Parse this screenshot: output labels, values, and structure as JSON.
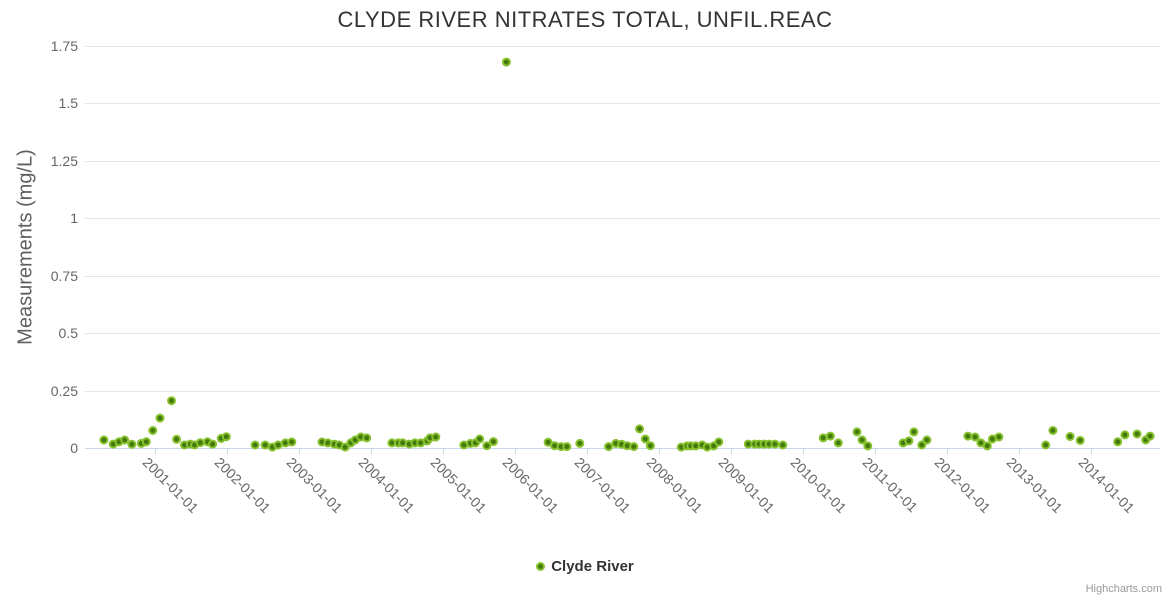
{
  "credits": "Highcharts.com",
  "colors": {
    "background": "#ffffff",
    "title_text": "#333333",
    "axis_label_text": "#666666",
    "gridline": "#e6e6e6",
    "axis_line": "#ccd6eb",
    "marker_fill": "#44790d",
    "marker_stroke": "#86c12e"
  },
  "chart_data": {
    "type": "scatter",
    "title": "CLYDE RIVER NITRATES TOTAL, UNFIL.REAC",
    "xlabel": "",
    "ylabel": "Measurements (mg/L)",
    "grid": "horizontal-only",
    "legend_position": "bottom-center",
    "xlim": [
      2000.028,
      2014.958
    ],
    "ylim": [
      0,
      1.75
    ],
    "y_axis": {
      "title": "Measurements (mg/L)",
      "ticks": [
        {
          "value": 0,
          "label": "0"
        },
        {
          "value": 0.25,
          "label": "0.25"
        },
        {
          "value": 0.5,
          "label": "0.5"
        },
        {
          "value": 0.75,
          "label": "0.75"
        },
        {
          "value": 1,
          "label": "1"
        },
        {
          "value": 1.25,
          "label": "1.25"
        },
        {
          "value": 1.5,
          "label": "1.5"
        },
        {
          "value": 1.75,
          "label": "1.75"
        }
      ]
    },
    "x_axis": {
      "ticks": [
        {
          "value": 2001,
          "label": "2001-01-01"
        },
        {
          "value": 2002,
          "label": "2002-01-01"
        },
        {
          "value": 2003,
          "label": "2003-01-01"
        },
        {
          "value": 2004,
          "label": "2004-01-01"
        },
        {
          "value": 2005,
          "label": "2005-01-01"
        },
        {
          "value": 2006,
          "label": "2006-01-01"
        },
        {
          "value": 2007,
          "label": "2007-01-01"
        },
        {
          "value": 2008,
          "label": "2008-01-01"
        },
        {
          "value": 2009,
          "label": "2009-01-01"
        },
        {
          "value": 2010,
          "label": "2010-01-01"
        },
        {
          "value": 2011,
          "label": "2011-01-01"
        },
        {
          "value": 2012,
          "label": "2012-01-01"
        },
        {
          "value": 2013,
          "label": "2013-01-01"
        },
        {
          "value": 2014,
          "label": "2014-01-01"
        }
      ]
    },
    "series": [
      {
        "name": "Clyde River",
        "marker": {
          "fill": "#44790d",
          "stroke": "#86c12e",
          "radius": 3.5,
          "stroke_width": 2
        },
        "points": [
          [
            2000.29,
            0.035
          ],
          [
            2000.42,
            0.017
          ],
          [
            2000.5,
            0.027
          ],
          [
            2000.58,
            0.035
          ],
          [
            2000.68,
            0.016
          ],
          [
            2000.81,
            0.02
          ],
          [
            2000.88,
            0.027
          ],
          [
            2000.97,
            0.076
          ],
          [
            2001.07,
            0.13
          ],
          [
            2001.23,
            0.206
          ],
          [
            2001.3,
            0.038
          ],
          [
            2001.41,
            0.013
          ],
          [
            2001.49,
            0.017
          ],
          [
            2001.55,
            0.013
          ],
          [
            2001.63,
            0.023
          ],
          [
            2001.73,
            0.027
          ],
          [
            2001.8,
            0.017
          ],
          [
            2001.92,
            0.042
          ],
          [
            2001.99,
            0.049
          ],
          [
            2002.39,
            0.013
          ],
          [
            2002.53,
            0.013
          ],
          [
            2002.63,
            0.004
          ],
          [
            2002.71,
            0.013
          ],
          [
            2002.81,
            0.022
          ],
          [
            2002.9,
            0.026
          ],
          [
            2003.32,
            0.026
          ],
          [
            2003.4,
            0.022
          ],
          [
            2003.49,
            0.017
          ],
          [
            2003.56,
            0.013
          ],
          [
            2003.64,
            0.004
          ],
          [
            2003.72,
            0.022
          ],
          [
            2003.78,
            0.035
          ],
          [
            2003.86,
            0.048
          ],
          [
            2003.94,
            0.044
          ],
          [
            2004.29,
            0.022
          ],
          [
            2004.38,
            0.022
          ],
          [
            2004.44,
            0.022
          ],
          [
            2004.53,
            0.017
          ],
          [
            2004.61,
            0.022
          ],
          [
            2004.69,
            0.022
          ],
          [
            2004.78,
            0.031
          ],
          [
            2004.82,
            0.044
          ],
          [
            2004.9,
            0.048
          ],
          [
            2005.29,
            0.013
          ],
          [
            2005.38,
            0.02
          ],
          [
            2005.45,
            0.022
          ],
          [
            2005.51,
            0.039
          ],
          [
            2005.61,
            0.01
          ],
          [
            2005.7,
            0.028
          ],
          [
            2005.88,
            1.68
          ],
          [
            2006.46,
            0.025
          ],
          [
            2006.55,
            0.01
          ],
          [
            2006.64,
            0.006
          ],
          [
            2006.72,
            0.006
          ],
          [
            2006.9,
            0.02
          ],
          [
            2007.3,
            0.006
          ],
          [
            2007.4,
            0.02
          ],
          [
            2007.48,
            0.016
          ],
          [
            2007.56,
            0.01
          ],
          [
            2007.65,
            0.006
          ],
          [
            2007.73,
            0.083
          ],
          [
            2007.81,
            0.039
          ],
          [
            2007.88,
            0.01
          ],
          [
            2008.31,
            0.004
          ],
          [
            2008.39,
            0.009
          ],
          [
            2008.44,
            0.009
          ],
          [
            2008.51,
            0.009
          ],
          [
            2008.6,
            0.013
          ],
          [
            2008.67,
            0.004
          ],
          [
            2008.76,
            0.009
          ],
          [
            2008.83,
            0.026
          ],
          [
            2009.24,
            0.017
          ],
          [
            2009.33,
            0.017
          ],
          [
            2009.39,
            0.017
          ],
          [
            2009.46,
            0.017
          ],
          [
            2009.53,
            0.017
          ],
          [
            2009.61,
            0.017
          ],
          [
            2009.72,
            0.013
          ],
          [
            2010.28,
            0.044
          ],
          [
            2010.38,
            0.052
          ],
          [
            2010.49,
            0.022
          ],
          [
            2010.75,
            0.07
          ],
          [
            2010.82,
            0.035
          ],
          [
            2010.9,
            0.009
          ],
          [
            2011.39,
            0.022
          ],
          [
            2011.47,
            0.031
          ],
          [
            2011.54,
            0.07
          ],
          [
            2011.65,
            0.013
          ],
          [
            2011.72,
            0.035
          ],
          [
            2012.29,
            0.052
          ],
          [
            2012.39,
            0.048
          ],
          [
            2012.47,
            0.022
          ],
          [
            2012.56,
            0.009
          ],
          [
            2012.63,
            0.039
          ],
          [
            2012.72,
            0.048
          ],
          [
            2013.37,
            0.013
          ],
          [
            2013.47,
            0.076
          ],
          [
            2013.71,
            0.05
          ],
          [
            2013.85,
            0.033
          ],
          [
            2014.37,
            0.027
          ],
          [
            2014.47,
            0.057
          ],
          [
            2014.64,
            0.061
          ],
          [
            2014.76,
            0.035
          ],
          [
            2014.82,
            0.052
          ]
        ]
      }
    ]
  }
}
